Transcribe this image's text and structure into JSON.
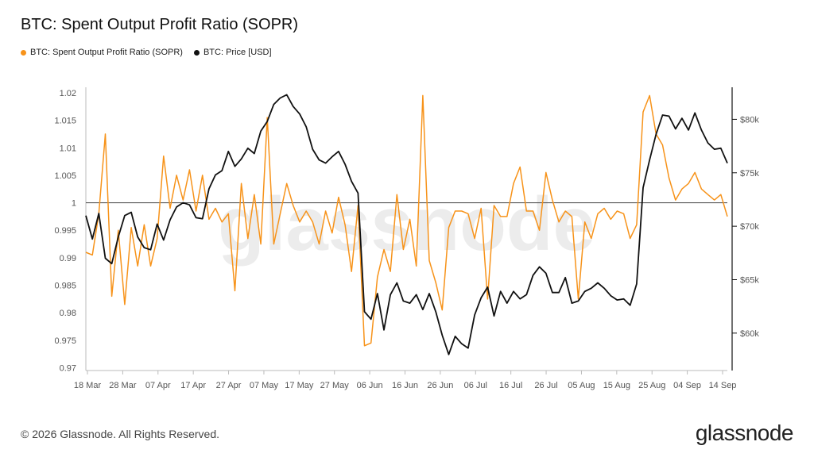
{
  "title": "BTC: Spent Output Profit Ratio (SOPR)",
  "legend": [
    {
      "label": "BTC: Spent Output Profit Ratio (SOPR)",
      "color": "#f7931a"
    },
    {
      "label": "BTC: Price [USD]",
      "color": "#111111"
    }
  ],
  "footer": "© 2026 Glassnode. All Rights Reserved.",
  "brand": "glassnode",
  "watermark": "glassnode",
  "chart_data": {
    "type": "line",
    "x_ticks": [
      "18 Mar",
      "28 Mar",
      "07 Apr",
      "17 Apr",
      "27 Apr",
      "07 May",
      "17 May",
      "27 May",
      "06 Jun",
      "16 Jun",
      "26 Jun",
      "06 Jul",
      "16 Jul",
      "26 Jul",
      "05 Aug",
      "15 Aug",
      "25 Aug",
      "04 Sep",
      "14 Sep"
    ],
    "y_left_ticks": [
      "0.97",
      "0.975",
      "0.98",
      "0.985",
      "0.99",
      "0.995",
      "1",
      "1.005",
      "1.01",
      "1.015",
      "1.02"
    ],
    "y_right_ticks": [
      "$60k",
      "$65k",
      "$70k",
      "$75k",
      "$80k"
    ],
    "ylim_left": [
      0.9695,
      1.021
    ],
    "ylim_right": [
      56500,
      83000
    ],
    "reference_line": 1,
    "series": [
      {
        "name": "BTC: Spent Output Profit Ratio (SOPR)",
        "axis": "left",
        "color": "#f7931a",
        "values": [
          0.991,
          0.9905,
          0.998,
          1.0125,
          0.983,
          0.995,
          0.9815,
          0.9955,
          0.9885,
          0.996,
          0.9885,
          0.9935,
          1.0085,
          0.999,
          1.005,
          1.0005,
          1.006,
          0.9985,
          1.005,
          0.997,
          0.999,
          0.9965,
          0.998,
          0.984,
          1.0035,
          0.9935,
          1.0015,
          0.9925,
          1.0155,
          0.9925,
          0.998,
          1.0035,
          0.9995,
          0.9965,
          0.9985,
          0.9965,
          0.9925,
          0.9985,
          0.9945,
          1.001,
          0.996,
          0.9875,
          0.9995,
          0.974,
          0.9745,
          0.9865,
          0.9915,
          0.9875,
          1.0015,
          0.9915,
          0.997,
          0.9885,
          1.0195,
          0.9895,
          0.9855,
          0.9805,
          0.9955,
          0.9985,
          0.9985,
          0.998,
          0.9935,
          0.999,
          0.9825,
          0.9995,
          0.9975,
          0.9975,
          1.0035,
          1.0065,
          0.9985,
          0.9985,
          0.995,
          1.0055,
          1.0005,
          0.9965,
          0.9985,
          0.9975,
          0.9825,
          0.9965,
          0.9935,
          0.998,
          0.999,
          0.997,
          0.9985,
          0.998,
          0.9935,
          0.996,
          1.0165,
          1.0195,
          1.0125,
          1.0105,
          1.0045,
          1.0005,
          1.0025,
          1.0035,
          1.0055,
          1.0025,
          1.0015,
          1.0005,
          1.0015,
          0.9975
        ]
      },
      {
        "name": "BTC: Price [USD]",
        "axis": "right",
        "color": "#111111",
        "values": [
          71000,
          68800,
          71200,
          67000,
          66500,
          69000,
          71000,
          71300,
          69000,
          68000,
          67800,
          70200,
          68700,
          70600,
          71800,
          72200,
          72000,
          70800,
          70700,
          73500,
          74800,
          75200,
          77000,
          75600,
          76300,
          77300,
          76800,
          78900,
          79800,
          81400,
          82000,
          82300,
          81200,
          80500,
          79300,
          77200,
          76200,
          75900,
          76500,
          77000,
          75800,
          74200,
          73100,
          62000,
          61300,
          63700,
          60300,
          63600,
          64700,
          63000,
          62800,
          63600,
          62200,
          63700,
          62000,
          59800,
          58000,
          59700,
          59000,
          58600,
          61700,
          63300,
          64300,
          61600,
          63900,
          62800,
          63900,
          63200,
          63600,
          65400,
          66200,
          65600,
          63800,
          63800,
          65200,
          62800,
          63000,
          63900,
          64200,
          64700,
          64200,
          63500,
          63100,
          63200,
          62600,
          64600,
          73600,
          76200,
          78600,
          80400,
          80300,
          79100,
          80100,
          79000,
          80600,
          79000,
          77800,
          77200,
          77300,
          75900
        ]
      }
    ]
  }
}
